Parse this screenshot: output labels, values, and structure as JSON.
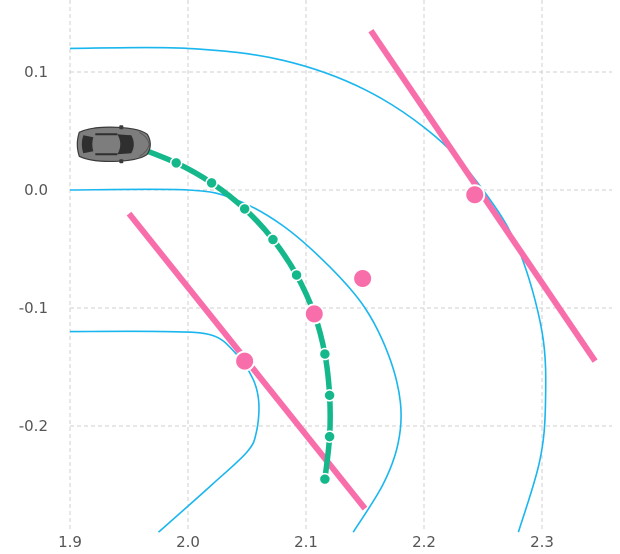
{
  "chart_data": {
    "type": "scatter",
    "title": "",
    "xlabel": "",
    "ylabel": "",
    "xlim": [
      1.9,
      2.35
    ],
    "ylim": [
      -0.27,
      0.15
    ],
    "grid": true,
    "x_ticks": [
      1.9,
      2.0,
      2.1,
      2.2,
      2.3
    ],
    "x_tick_labels": [
      "1.9",
      "2.0",
      "2.1",
      "2.2",
      "2.3"
    ],
    "y_ticks": [
      0.1,
      0.0,
      -0.1,
      -0.2
    ],
    "y_tick_labels": [
      "0.1",
      "0.0",
      "-0.1",
      "-0.2"
    ],
    "colors": {
      "road": "#1ab6ee",
      "path": "#14b88a",
      "marker": "#f86eab",
      "car_body": "#7d7d7d",
      "grid": "#cfcfcf",
      "tick_text": "#555555"
    },
    "vehicle": {
      "x": 1.935,
      "y": 0.037,
      "icon": "car-icon"
    },
    "road_lines": [
      {
        "points": [
          [
            1.9,
            0.12
          ],
          [
            2.0,
            0.12
          ],
          [
            2.08,
            0.11
          ],
          [
            2.15,
            0.085
          ],
          [
            2.21,
            0.045
          ],
          [
            2.25,
            0.0
          ],
          [
            2.28,
            -0.05
          ],
          [
            2.3,
            -0.12
          ],
          [
            2.303,
            -0.18
          ],
          [
            2.298,
            -0.23
          ],
          [
            2.28,
            -0.29
          ]
        ]
      },
      {
        "points": [
          [
            1.9,
            0.0
          ],
          [
            2.0,
            0.0
          ],
          [
            2.04,
            -0.008
          ],
          [
            2.08,
            -0.03
          ],
          [
            2.12,
            -0.065
          ],
          [
            2.15,
            -0.1
          ],
          [
            2.17,
            -0.14
          ],
          [
            2.18,
            -0.18
          ],
          [
            2.178,
            -0.215
          ],
          [
            2.165,
            -0.25
          ],
          [
            2.14,
            -0.29
          ]
        ]
      },
      {
        "points": [
          [
            1.9,
            -0.12
          ],
          [
            1.98,
            -0.12
          ],
          [
            2.02,
            -0.123
          ],
          [
            2.04,
            -0.138
          ],
          [
            2.055,
            -0.16
          ],
          [
            2.06,
            -0.18
          ],
          [
            2.058,
            -0.205
          ],
          [
            2.05,
            -0.222
          ],
          [
            2.02,
            -0.25
          ],
          [
            1.975,
            -0.29
          ]
        ]
      }
    ],
    "path_line": [
      [
        1.955,
        0.037
      ],
      [
        1.99,
        0.023
      ],
      [
        2.02,
        0.006
      ],
      [
        2.048,
        -0.016
      ],
      [
        2.072,
        -0.042
      ],
      [
        2.092,
        -0.072
      ],
      [
        2.107,
        -0.105
      ],
      [
        2.116,
        -0.139
      ],
      [
        2.12,
        -0.174
      ],
      [
        2.12,
        -0.209
      ],
      [
        2.116,
        -0.245
      ]
    ],
    "path_points": [
      {
        "x": 1.955,
        "y": 0.037
      },
      {
        "x": 1.99,
        "y": 0.023
      },
      {
        "x": 2.02,
        "y": 0.006
      },
      {
        "x": 2.048,
        "y": -0.016
      },
      {
        "x": 2.072,
        "y": -0.042
      },
      {
        "x": 2.092,
        "y": -0.072
      },
      {
        "x": 2.116,
        "y": -0.139
      },
      {
        "x": 2.12,
        "y": -0.174
      },
      {
        "x": 2.12,
        "y": -0.209
      },
      {
        "x": 2.116,
        "y": -0.245
      }
    ],
    "gates": [
      {
        "from": [
          1.95,
          -0.02
        ],
        "to": [
          2.15,
          -0.27
        ]
      },
      {
        "from": [
          2.155,
          0.135
        ],
        "to": [
          2.345,
          -0.145
        ]
      }
    ],
    "markers": [
      {
        "x": 2.048,
        "y": -0.145
      },
      {
        "x": 2.107,
        "y": -0.105
      },
      {
        "x": 2.148,
        "y": -0.075
      },
      {
        "x": 2.243,
        "y": -0.004
      }
    ]
  }
}
